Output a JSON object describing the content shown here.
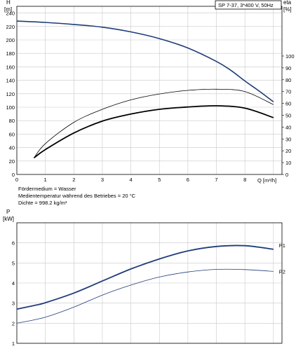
{
  "chart_data": [
    {
      "type": "line",
      "id": "head_efficiency",
      "title": "SP 7-37, 3*400 V, 50Hz",
      "xlabel": "Q [m³/h]",
      "xlim": [
        0,
        9.3
      ],
      "x_ticks": [
        "0",
        "1",
        "2",
        "3",
        "4",
        "5",
        "6",
        "7",
        "8"
      ],
      "left_axis": {
        "label_top": "H",
        "label_unit": "[m]",
        "ylim": [
          0,
          250
        ],
        "ticks": [
          "0",
          "20",
          "40",
          "60",
          "80",
          "100",
          "120",
          "140",
          "160",
          "180",
          "200",
          "220",
          "240"
        ]
      },
      "right_axis": {
        "label_top": "eta",
        "label_unit": "[%]",
        "ylim": [
          0,
          142
        ],
        "ticks": [
          "0",
          "10",
          "20",
          "30",
          "40",
          "50",
          "60",
          "70",
          "80",
          "90",
          "100"
        ]
      },
      "grid": true,
      "series": [
        {
          "axis": "left",
          "color": "#1f3c78",
          "x": [
            0,
            1,
            2,
            3,
            4,
            5,
            6,
            7,
            7.5,
            8,
            8.5,
            9
          ],
          "y": [
            228,
            226,
            223,
            219,
            212,
            202,
            188,
            168,
            155,
            139,
            124,
            108
          ]
        },
        {
          "axis": "right",
          "color": "#000000",
          "style": "thin",
          "x": [
            0.6,
            1,
            2,
            3,
            4,
            5,
            6,
            7,
            8,
            9
          ],
          "y": [
            14,
            26,
            44,
            55,
            63,
            68,
            71,
            72,
            70,
            59
          ]
        },
        {
          "axis": "right",
          "color": "#000000",
          "style": "thick",
          "x": [
            0.6,
            1,
            2,
            3,
            4,
            5,
            6,
            7,
            8,
            9
          ],
          "y": [
            14,
            21,
            35,
            45,
            51,
            55,
            57,
            58,
            56,
            48
          ]
        }
      ],
      "notes": [
        "Fördermedium = Wasser",
        "Medientemperatur während des Betriebes = 20 °C",
        "Dichte = 998.2 kg/m³"
      ]
    },
    {
      "type": "line",
      "id": "power",
      "ylabel_top": "P",
      "ylabel_unit": "[kW]",
      "xlim": [
        0,
        9.3
      ],
      "ylim": [
        1,
        7
      ],
      "y_ticks": [
        "1",
        "2",
        "3",
        "4",
        "5",
        "6"
      ],
      "grid": true,
      "series": [
        {
          "name": "P1",
          "color": "#1f3c78",
          "style": "thick",
          "x": [
            0,
            0.6,
            1,
            2,
            3,
            4,
            5,
            6,
            7,
            8,
            9
          ],
          "y": [
            2.7,
            2.88,
            3.02,
            3.5,
            4.1,
            4.7,
            5.2,
            5.6,
            5.82,
            5.86,
            5.68
          ]
        },
        {
          "name": "P2",
          "color": "#1f3c78",
          "style": "thin",
          "x": [
            0,
            1,
            2,
            3,
            4,
            5,
            6,
            7,
            8,
            9
          ],
          "y": [
            2.0,
            2.3,
            2.8,
            3.4,
            3.9,
            4.3,
            4.55,
            4.68,
            4.67,
            4.58
          ]
        }
      ]
    }
  ]
}
